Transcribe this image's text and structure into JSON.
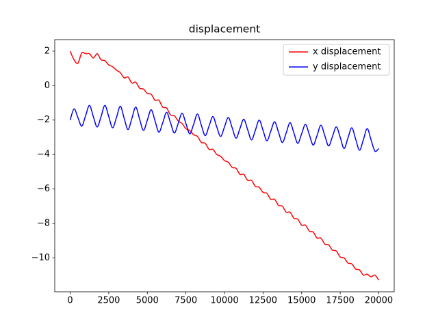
{
  "chart_data": {
    "type": "line",
    "title": "displacement",
    "x": [
      0,
      250,
      500,
      750,
      1000,
      1250,
      1500,
      1750,
      2000,
      2250,
      2500,
      2750,
      3000,
      3250,
      3500,
      3750,
      4000,
      4250,
      4500,
      4750,
      5000,
      5250,
      5500,
      5750,
      6000,
      6250,
      6500,
      6750,
      7000,
      7250,
      7500,
      7750,
      8000,
      8250,
      8500,
      8750,
      9000,
      9250,
      9500,
      9750,
      10000,
      10250,
      10500,
      10750,
      11000,
      11250,
      11500,
      11750,
      12000,
      12250,
      12500,
      12750,
      13000,
      13250,
      13500,
      13750,
      14000,
      14250,
      14500,
      14750,
      15000,
      15250,
      15500,
      15750,
      16000,
      16250,
      16500,
      16750,
      17000,
      17250,
      17500,
      17750,
      18000,
      18250,
      18500,
      18750,
      19000,
      19250,
      19500,
      19750,
      20000
    ],
    "series": [
      {
        "name": "x displacement",
        "color": "#ff0000",
        "values": [
          2.0,
          1.5,
          1.3,
          1.9,
          1.85,
          1.85,
          1.6,
          1.85,
          1.5,
          1.45,
          1.2,
          1.1,
          0.9,
          0.75,
          0.45,
          0.5,
          0.15,
          0.2,
          -0.15,
          -0.2,
          -0.45,
          -0.5,
          -0.85,
          -0.85,
          -1.25,
          -1.3,
          -1.7,
          -1.75,
          -2.05,
          -2.2,
          -2.5,
          -2.6,
          -2.85,
          -2.95,
          -3.3,
          -3.35,
          -3.7,
          -3.7,
          -4.0,
          -4.1,
          -4.35,
          -4.45,
          -4.75,
          -4.8,
          -5.15,
          -5.15,
          -5.5,
          -5.5,
          -5.85,
          -5.9,
          -6.2,
          -6.25,
          -6.6,
          -6.6,
          -6.95,
          -7.0,
          -7.35,
          -7.35,
          -7.7,
          -7.75,
          -8.1,
          -8.1,
          -8.45,
          -8.5,
          -8.85,
          -8.85,
          -9.2,
          -9.25,
          -9.55,
          -9.6,
          -9.95,
          -10.0,
          -10.3,
          -10.35,
          -10.65,
          -10.7,
          -11.0,
          -10.95,
          -11.1,
          -11.0,
          -11.3
        ]
      },
      {
        "name": "y displacement",
        "color": "#0000ff",
        "values": [
          -2.0,
          -1.35,
          -1.85,
          -2.35,
          -1.75,
          -1.15,
          -1.8,
          -2.4,
          -1.8,
          -1.15,
          -1.8,
          -2.45,
          -1.85,
          -1.2,
          -1.9,
          -2.55,
          -1.9,
          -1.25,
          -1.95,
          -2.6,
          -2.0,
          -1.4,
          -2.05,
          -2.7,
          -2.15,
          -1.55,
          -2.15,
          -2.75,
          -2.2,
          -1.6,
          -2.2,
          -2.8,
          -2.25,
          -1.65,
          -2.3,
          -2.9,
          -2.35,
          -1.8,
          -2.4,
          -2.95,
          -2.4,
          -1.85,
          -2.45,
          -3.05,
          -2.5,
          -1.95,
          -2.55,
          -3.15,
          -2.6,
          -2.0,
          -2.6,
          -3.2,
          -2.65,
          -2.1,
          -2.7,
          -3.3,
          -2.75,
          -2.15,
          -2.75,
          -3.35,
          -2.8,
          -2.25,
          -2.85,
          -3.45,
          -2.9,
          -2.3,
          -2.9,
          -3.5,
          -2.95,
          -2.4,
          -3.0,
          -3.65,
          -3.05,
          -2.45,
          -3.1,
          -3.75,
          -3.15,
          -2.5,
          -3.15,
          -3.8,
          -3.65
        ]
      }
    ],
    "xlim": [
      -1000,
      21000
    ],
    "xticks": [
      0,
      2500,
      5000,
      7500,
      10000,
      12500,
      15000,
      17500,
      20000
    ],
    "ylim": [
      -11.97,
      2.67
    ],
    "yticks": [
      {
        "value": -10,
        "label": "−10"
      },
      {
        "value": -8,
        "label": "−8"
      },
      {
        "value": -6,
        "label": "−6"
      },
      {
        "value": -4,
        "label": "−4"
      },
      {
        "value": -2,
        "label": "−2"
      },
      0,
      2
    ],
    "legend": "upper right"
  }
}
